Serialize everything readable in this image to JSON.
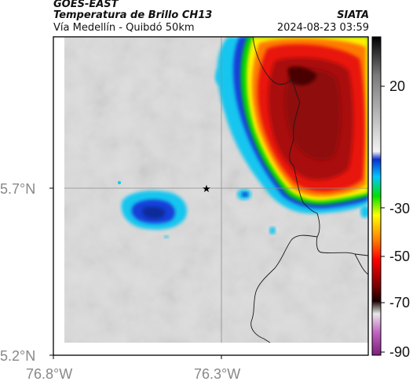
{
  "header": {
    "satellite": "GOES-EAST",
    "product": "Temperatura de Brillo CH13",
    "region": "Vía Medellín - Quibdó 50km",
    "agency": "SIATA",
    "timestamp": "2024-08-23 03:59"
  },
  "axes": {
    "x_ticks": [
      "76.8°W",
      "76.3°W"
    ],
    "y_ticks": [
      "5.7°N",
      "5.2°N"
    ],
    "marker_symbol": "★"
  },
  "colorbar": {
    "tick_labels": [
      "20",
      "-30",
      "-50",
      "-70",
      "-90"
    ],
    "stops": [
      "#000000",
      "#909090",
      "#ffffff",
      "#0060ff",
      "#00c8ff",
      "#00ff00",
      "#ffff00",
      "#ff6a00",
      "#ff0000",
      "#a00000",
      "#200000",
      "#ffffff",
      "#c050c0",
      "#802080"
    ]
  },
  "colors": {
    "storm_core": "#8f0a0a",
    "storm_red": "#e8140c",
    "cloud_cyan": "#13c6ef",
    "cloud_blue": "#1440d8",
    "background_gray": "#dcdcdc",
    "border_line": "#1a1a1a"
  }
}
